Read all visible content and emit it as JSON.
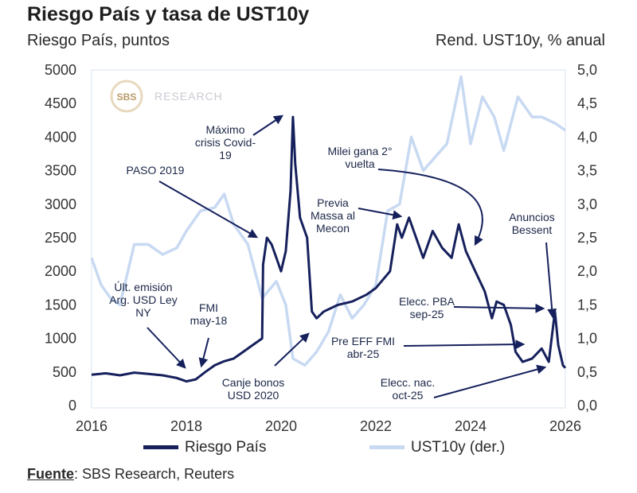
{
  "header": {
    "title": "Riesgo País y tasa de UST10y",
    "left_axis_title": "Riesgo País, puntos",
    "right_axis_title": "Rend. UST10y, % anual"
  },
  "logo": {
    "mark": "SBS",
    "word": "RESEARCH"
  },
  "source": {
    "label": "Fuente",
    "text": ": SBS Research, Reuters"
  },
  "colors": {
    "riesgo": "#15205c",
    "ust": "#c8d9f2",
    "arrow": "#15205c"
  },
  "chart_data": {
    "type": "line",
    "title": "Riesgo País y tasa de UST10y",
    "xlim": [
      2016,
      2026
    ],
    "x_ticks": [
      "2016",
      "2018",
      "2020",
      "2022",
      "2024",
      "2026"
    ],
    "y_left": {
      "label": "Riesgo País, puntos",
      "lim": [
        0,
        5000
      ],
      "ticks": [
        "0",
        "500",
        "1000",
        "1500",
        "2000",
        "2500",
        "3000",
        "3500",
        "4000",
        "4500",
        "5000"
      ]
    },
    "y_right": {
      "label": "Rend. UST10y, % anual",
      "lim": [
        0,
        5
      ],
      "ticks": [
        "0,0",
        "0,5",
        "1,0",
        "1,5",
        "2,0",
        "2,5",
        "3,0",
        "3,5",
        "4,0",
        "4,5",
        "5,0"
      ]
    },
    "series": [
      {
        "name": "Riesgo País",
        "axis": "left",
        "points": [
          [
            2016.0,
            460
          ],
          [
            2016.3,
            480
          ],
          [
            2016.6,
            450
          ],
          [
            2016.9,
            490
          ],
          [
            2017.2,
            470
          ],
          [
            2017.5,
            450
          ],
          [
            2017.8,
            410
          ],
          [
            2018.0,
            360
          ],
          [
            2018.2,
            390
          ],
          [
            2018.4,
            500
          ],
          [
            2018.6,
            600
          ],
          [
            2018.8,
            660
          ],
          [
            2019.0,
            700
          ],
          [
            2019.2,
            800
          ],
          [
            2019.4,
            900
          ],
          [
            2019.6,
            1000
          ],
          [
            2019.62,
            2100
          ],
          [
            2019.7,
            2500
          ],
          [
            2019.8,
            2400
          ],
          [
            2019.9,
            2200
          ],
          [
            2020.0,
            2000
          ],
          [
            2020.1,
            2300
          ],
          [
            2020.2,
            3200
          ],
          [
            2020.25,
            4300
          ],
          [
            2020.3,
            3600
          ],
          [
            2020.4,
            2800
          ],
          [
            2020.55,
            2500
          ],
          [
            2020.65,
            1400
          ],
          [
            2020.75,
            1300
          ],
          [
            2020.9,
            1400
          ],
          [
            2021.2,
            1500
          ],
          [
            2021.5,
            1550
          ],
          [
            2021.8,
            1650
          ],
          [
            2022.0,
            1750
          ],
          [
            2022.3,
            2000
          ],
          [
            2022.45,
            2700
          ],
          [
            2022.55,
            2500
          ],
          [
            2022.7,
            2800
          ],
          [
            2022.85,
            2500
          ],
          [
            2023.0,
            2200
          ],
          [
            2023.2,
            2600
          ],
          [
            2023.4,
            2350
          ],
          [
            2023.6,
            2200
          ],
          [
            2023.75,
            2700
          ],
          [
            2023.9,
            2300
          ],
          [
            2024.1,
            2000
          ],
          [
            2024.3,
            1700
          ],
          [
            2024.45,
            1300
          ],
          [
            2024.55,
            1550
          ],
          [
            2024.7,
            1500
          ],
          [
            2024.85,
            1200
          ],
          [
            2024.95,
            800
          ],
          [
            2025.1,
            650
          ],
          [
            2025.3,
            700
          ],
          [
            2025.5,
            850
          ],
          [
            2025.65,
            650
          ],
          [
            2025.78,
            1400
          ],
          [
            2025.85,
            900
          ],
          [
            2025.95,
            600
          ],
          [
            2026.0,
            560
          ]
        ]
      },
      {
        "name": "UST10y (der.)",
        "axis": "right",
        "points": [
          [
            2016.0,
            2.2
          ],
          [
            2016.2,
            1.8
          ],
          [
            2016.4,
            1.6
          ],
          [
            2016.6,
            1.5
          ],
          [
            2016.9,
            2.4
          ],
          [
            2017.2,
            2.4
          ],
          [
            2017.5,
            2.25
          ],
          [
            2017.8,
            2.35
          ],
          [
            2018.0,
            2.6
          ],
          [
            2018.3,
            2.9
          ],
          [
            2018.6,
            2.95
          ],
          [
            2018.8,
            3.15
          ],
          [
            2019.0,
            2.7
          ],
          [
            2019.3,
            2.4
          ],
          [
            2019.6,
            1.6
          ],
          [
            2019.9,
            1.85
          ],
          [
            2020.1,
            1.5
          ],
          [
            2020.25,
            0.7
          ],
          [
            2020.5,
            0.6
          ],
          [
            2020.75,
            0.8
          ],
          [
            2021.0,
            1.1
          ],
          [
            2021.25,
            1.65
          ],
          [
            2021.5,
            1.3
          ],
          [
            2021.75,
            1.5
          ],
          [
            2022.0,
            1.8
          ],
          [
            2022.25,
            2.9
          ],
          [
            2022.5,
            3.0
          ],
          [
            2022.75,
            4.0
          ],
          [
            2023.0,
            3.5
          ],
          [
            2023.25,
            3.7
          ],
          [
            2023.5,
            3.9
          ],
          [
            2023.8,
            4.9
          ],
          [
            2024.0,
            3.9
          ],
          [
            2024.25,
            4.6
          ],
          [
            2024.5,
            4.3
          ],
          [
            2024.7,
            3.8
          ],
          [
            2025.0,
            4.6
          ],
          [
            2025.3,
            4.3
          ],
          [
            2025.5,
            4.3
          ],
          [
            2025.8,
            4.2
          ],
          [
            2026.0,
            4.1
          ]
        ]
      }
    ],
    "annotations": [
      "Últ. emisión|Arg. USD Ley|NY",
      "FMI|may-18",
      "PASO 2019",
      "Máximo|crisis Covid-|19",
      "Canje bonos|USD 2020",
      "Previa|Massa al|Mecon",
      "Milei gana 2°|vuelta",
      "Pre EFF FMI|abr-25",
      "Elecc. PBA|sep-25",
      "Elecc. nac.|oct-25",
      "Anuncios|Bessent"
    ]
  }
}
